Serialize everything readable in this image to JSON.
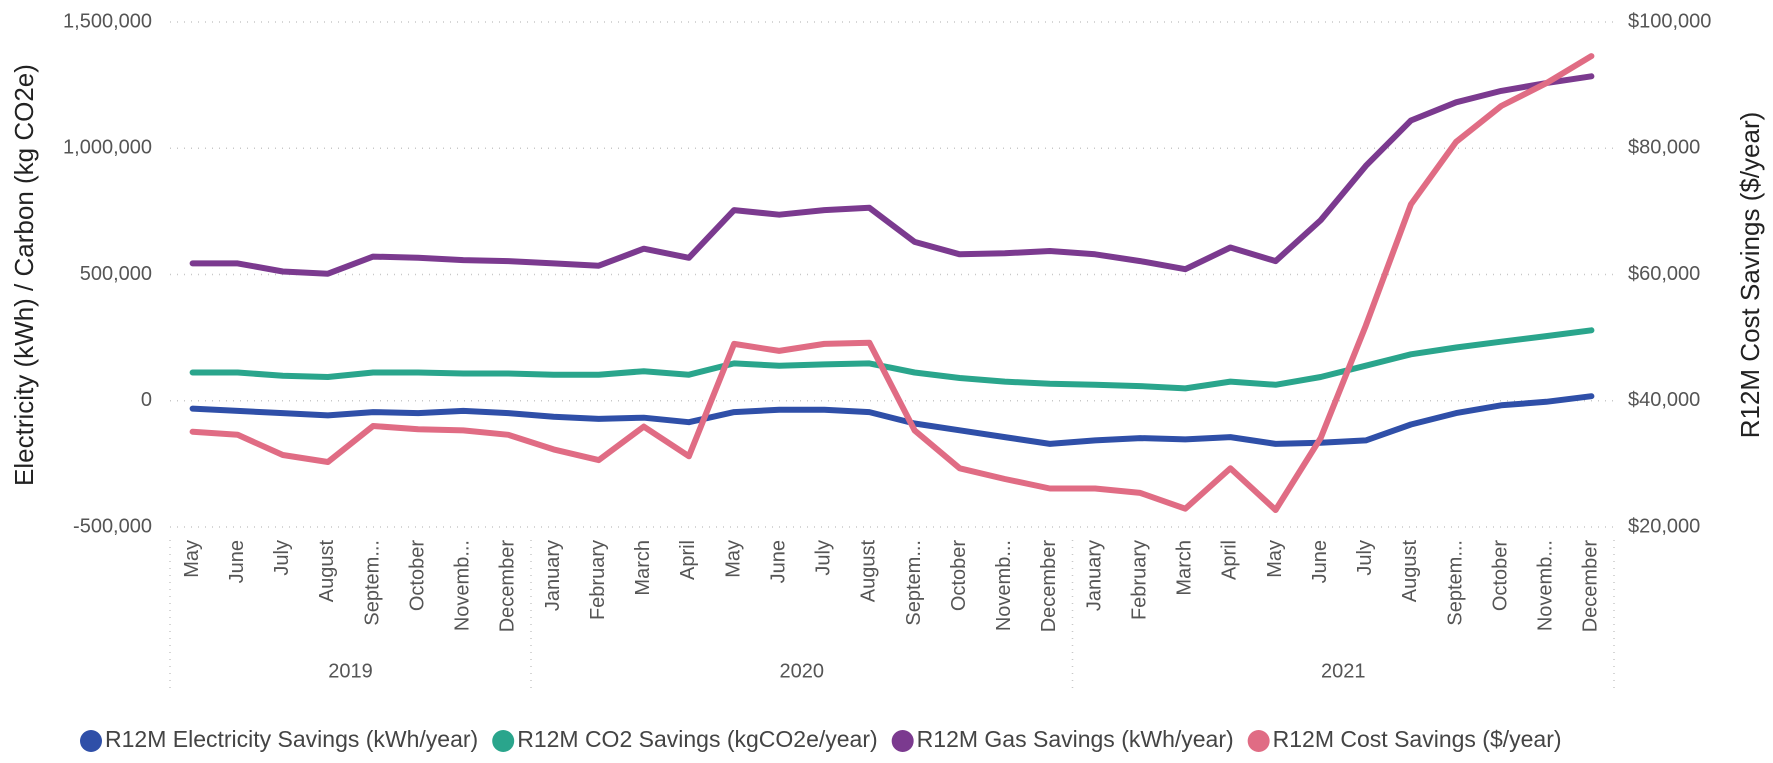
{
  "chart_data": {
    "type": "line",
    "y_title": "Electricity (kWh) / Carbon (kg CO2e)",
    "y2_title": "R12M Cost Savings ($/year)",
    "categories": [
      "May",
      "June",
      "July",
      "August",
      "Septem...",
      "October",
      "Novemb...",
      "December",
      "January",
      "February",
      "March",
      "April",
      "May",
      "June",
      "July",
      "August",
      "Septem...",
      "October",
      "Novemb...",
      "December",
      "January",
      "February",
      "March",
      "April",
      "May",
      "June",
      "July",
      "August",
      "Septem...",
      "October",
      "Novemb...",
      "December"
    ],
    "year_groups": [
      {
        "label": "2019",
        "months": 8
      },
      {
        "label": "2020",
        "months": 12
      },
      {
        "label": "2021",
        "months": 12
      }
    ],
    "ylim": [
      -500000,
      1500000
    ],
    "yticks": [
      {
        "value": -500000,
        "label": "-500,000"
      },
      0,
      {
        "value": 500000,
        "label": "500,000"
      },
      {
        "value": 1000000,
        "label": "1,000,000"
      },
      {
        "value": 1500000,
        "label": "1,500,000"
      }
    ],
    "y2lim": [
      20000,
      100000
    ],
    "y2ticks": [
      {
        "value": 20000,
        "label": "$20,000"
      },
      {
        "value": 40000,
        "label": "$40,000"
      },
      {
        "value": 60000,
        "label": "$60,000"
      },
      {
        "value": 80000,
        "label": "$80,000"
      },
      {
        "value": 100000,
        "label": "$100,000"
      }
    ],
    "grid": true,
    "legend": "bottom",
    "series": [
      {
        "name": "R12M Electricity Savings (kWh/year)",
        "color": "#2f4fa8",
        "values": [
          -31000,
          -40000,
          -49000,
          -58000,
          -45000,
          -49000,
          -40000,
          -49000,
          -63000,
          -72000,
          -67000,
          -85000,
          -45000,
          -36000,
          -36000,
          -45000,
          -90000,
          -117000,
          -144000,
          -171000,
          -157000,
          -148000,
          -153000,
          -144000,
          -171000,
          -166000,
          -157000,
          -94000,
          -49000,
          -18000,
          -4000,
          18000
        ]
      },
      {
        "name": "R12M CO2 Savings (kgCO2e/year)",
        "color": "#2aa58c",
        "values": [
          112000,
          112000,
          99000,
          94000,
          112000,
          112000,
          108000,
          108000,
          103000,
          103000,
          117000,
          103000,
          148000,
          139000,
          144000,
          148000,
          112000,
          90000,
          76000,
          67000,
          63000,
          58000,
          49000,
          76000,
          63000,
          94000,
          139000,
          184000,
          211000,
          234000,
          256000,
          279000
        ]
      },
      {
        "name": "R12M Gas Savings (kWh/year)",
        "color": "#7b3a8f",
        "values": [
          544000,
          544000,
          512000,
          503000,
          571000,
          566000,
          557000,
          553000,
          544000,
          535000,
          602000,
          566000,
          755000,
          737000,
          755000,
          764000,
          629000,
          580000,
          584000,
          593000,
          580000,
          553000,
          521000,
          607000,
          553000,
          715000,
          930000,
          1110000,
          1182000,
          1227000,
          1258000,
          1285000
        ]
      },
      {
        "name": "R12M Cost Savings ($/year)",
        "color": "#e06c84",
        "axis": "y2",
        "values": [
          35100,
          34600,
          31400,
          30300,
          36000,
          35500,
          35300,
          34600,
          32300,
          30600,
          35900,
          31200,
          49000,
          47900,
          49000,
          49200,
          35300,
          29300,
          27600,
          26100,
          26100,
          25400,
          22900,
          29300,
          22700,
          34100,
          51900,
          71100,
          81000,
          86700,
          90300,
          94600
        ]
      }
    ]
  }
}
